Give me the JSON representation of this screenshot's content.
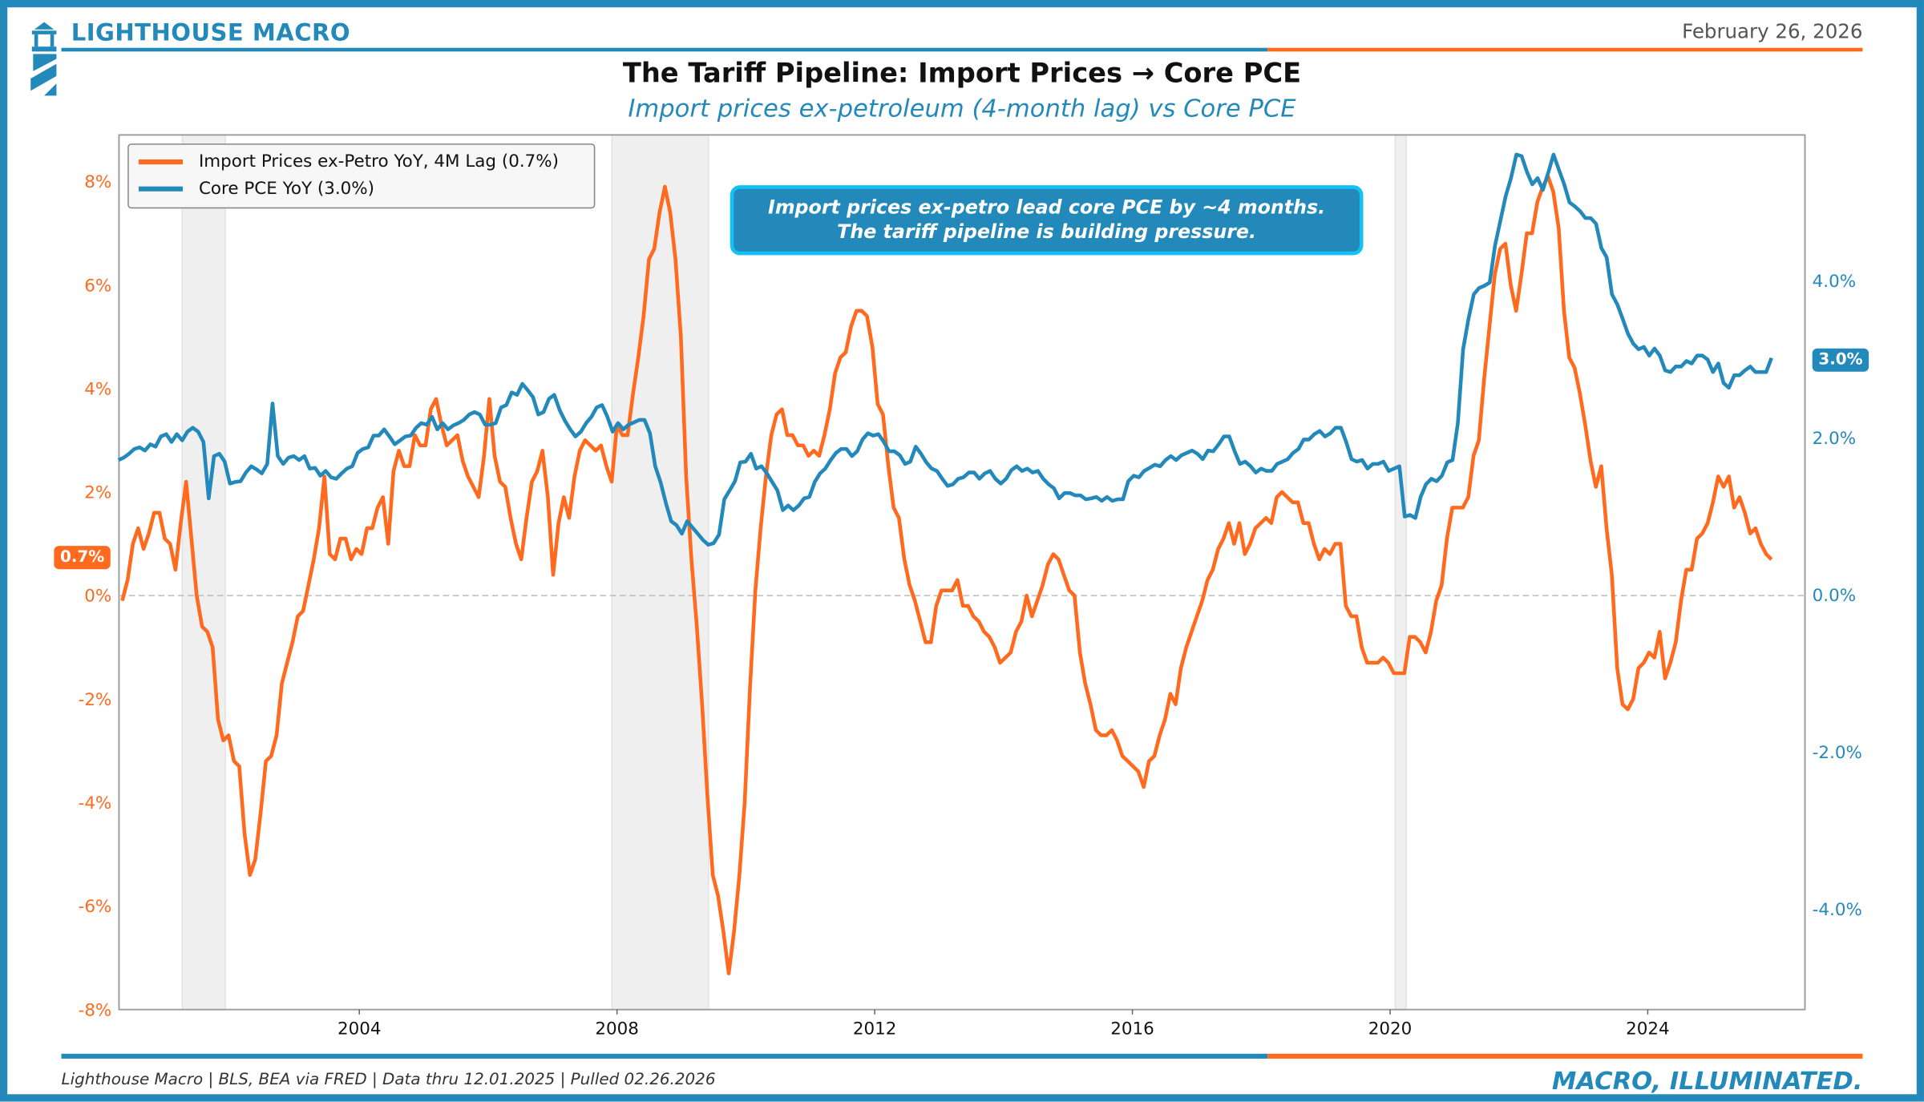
{
  "header": {
    "brand": "LIGHTHOUSE MACRO",
    "date": "February 26, 2026",
    "title": "The Tariff Pipeline: Import Prices → Core PCE",
    "subtitle": "Import prices ex-petroleum (4-month lag) vs Core PCE"
  },
  "annotation": {
    "line1": "Import prices ex-petro lead core PCE by ~4 months.",
    "line2": "The tariff pipeline is building pressure."
  },
  "badges": {
    "left": "0.7%",
    "right": "3.0%"
  },
  "footer": {
    "source": "Lighthouse Macro | BLS, BEA via FRED | Data thru 12.01.2025 | Pulled 02.26.2026",
    "tagline": "MACRO, ILLUMINATED."
  },
  "colors": {
    "orange": "#ff6a1f",
    "blue": "#2389ba",
    "recession": "#efefef"
  },
  "chart_data": {
    "type": "line",
    "title": "The Tariff Pipeline: Import Prices → Core PCE",
    "xlim": [
      2000.27,
      2026.44
    ],
    "x_ticks": [
      2004,
      2008,
      2012,
      2016,
      2020,
      2024
    ],
    "x_tick_labels": [
      "2004",
      "2008",
      "2012",
      "2016",
      "2020",
      "2024"
    ],
    "left_axis": {
      "ylim": [
        -8.0,
        8.9
      ],
      "ticks": [
        -8,
        -6,
        -4,
        -2,
        0,
        2,
        4,
        6,
        8
      ],
      "tick_labels": [
        "-8%",
        "-6%",
        "-4%",
        "-2%",
        "0%",
        "2%",
        "4%",
        "6%",
        "8%"
      ]
    },
    "right_axis": {
      "ylim": [
        -5.28,
        5.86
      ],
      "ticks": [
        -4,
        -2,
        0,
        2,
        4
      ],
      "tick_labels": [
        "-4.0%",
        "-2.0%",
        "0.0%",
        "2.0%",
        "4.0%"
      ]
    },
    "zero_line": true,
    "legend_position": "top-left",
    "recessions": [
      [
        2001.25,
        2001.92
      ],
      [
        2007.92,
        2009.42
      ],
      [
        2020.08,
        2020.25
      ]
    ],
    "series": [
      {
        "name": "Import Prices ex-Petro YoY, 4M Lag (0.7%)",
        "axis": "left",
        "color": "#ff6a1f",
        "start": 2000.32,
        "end": 2025.92,
        "values": [
          -0.1,
          0.3,
          1.0,
          1.3,
          0.9,
          1.2,
          1.6,
          1.6,
          1.1,
          1.0,
          0.5,
          1.4,
          2.2,
          1.1,
          0,
          -0.6,
          -0.7,
          -1.0,
          -2.4,
          -2.8,
          -2.7,
          -3.2,
          -3.3,
          -4.6,
          -5.4,
          -5.1,
          -4.2,
          -3.2,
          -3.1,
          -2.7,
          -1.7,
          -1.3,
          -0.9,
          -0.4,
          -0.3,
          0.2,
          0.7,
          1.3,
          2.3,
          0.8,
          0.7,
          1.1,
          1.1,
          0.7,
          0.9,
          0.8,
          1.3,
          1.3,
          1.7,
          1.9,
          1.0,
          2.4,
          2.8,
          2.5,
          2.5,
          3.1,
          2.9,
          2.9,
          3.6,
          3.8,
          3.3,
          2.9,
          3.0,
          3.1,
          2.6,
          2.3,
          2.1,
          1.9,
          2.7,
          3.8,
          2.7,
          2.2,
          2.1,
          1.5,
          1.0,
          0.7,
          1.5,
          2.2,
          2.4,
          2.8,
          1.9,
          0.4,
          1.4,
          1.9,
          1.5,
          2.3,
          2.8,
          3.0,
          2.9,
          2.8,
          2.9,
          2.5,
          2.2,
          3.3,
          3.1,
          3.1,
          3.9,
          4.6,
          5.4,
          6.5,
          6.7,
          7.4,
          7.9,
          7.4,
          6.5,
          5.0,
          2.3,
          0.7,
          -0.6,
          -2.1,
          -3.9,
          -5.4,
          -5.8,
          -6.5,
          -7.3,
          -6.5,
          -5.4,
          -4.0,
          -1.8,
          0.1,
          1.3,
          2.3,
          3.1,
          3.5,
          3.6,
          3.1,
          3.1,
          2.9,
          2.9,
          2.7,
          2.8,
          2.7,
          3.1,
          3.6,
          4.3,
          4.6,
          4.7,
          5.2,
          5.5,
          5.5,
          5.4,
          4.8,
          3.7,
          3.5,
          2.5,
          1.7,
          1.5,
          0.7,
          0.2,
          -0.1,
          -0.5,
          -0.9,
          -0.9,
          -0.2,
          0.1,
          0.1,
          0.1,
          0.3,
          -0.2,
          -0.2,
          -0.4,
          -0.5,
          -0.7,
          -0.8,
          -1.0,
          -1.3,
          -1.2,
          -1.1,
          -0.7,
          -0.5,
          0,
          -0.4,
          -0.1,
          0.2,
          0.6,
          0.8,
          0.7,
          0.4,
          0.1,
          0,
          -1.1,
          -1.7,
          -2.1,
          -2.6,
          -2.7,
          -2.7,
          -2.6,
          -2.8,
          -3.1,
          -3.2,
          -3.3,
          -3.4,
          -3.7,
          -3.2,
          -3.1,
          -2.7,
          -2.4,
          -1.9,
          -2.1,
          -1.4,
          -1.0,
          -0.7,
          -0.4,
          -0.1,
          0.3,
          0.5,
          0.9,
          1.1,
          1.4,
          1.0,
          1.4,
          0.8,
          1.0,
          1.3,
          1.4,
          1.5,
          1.4,
          1.9,
          2.0,
          1.9,
          1.8,
          1.8,
          1.4,
          1.4,
          1.0,
          0.7,
          0.9,
          0.8,
          1.0,
          1.0,
          -0.2,
          -0.4,
          -0.4,
          -1.0,
          -1.3,
          -1.3,
          -1.3,
          -1.2,
          -1.3,
          -1.5,
          -1.5,
          -1.5,
          -0.8,
          -0.8,
          -0.9,
          -1.1,
          -0.7,
          -0.1,
          0.2,
          1.1,
          1.7,
          1.7,
          1.7,
          1.9,
          2.7,
          3.0,
          4.2,
          5.2,
          6.2,
          6.7,
          6.8,
          6.0,
          5.5,
          6.2,
          7.0,
          7.0,
          7.6,
          7.9,
          8.1,
          7.8,
          7.1,
          5.5,
          4.6,
          4.4,
          3.9,
          3.3,
          2.6,
          2.1,
          2.5,
          1.3,
          0.4,
          -1.4,
          -2.1,
          -2.2,
          -2.0,
          -1.4,
          -1.3,
          -1.1,
          -1.2,
          -0.7,
          -1.6,
          -1.3,
          -0.9,
          -0.1,
          0.5,
          0.5,
          1.1,
          1.2,
          1.4,
          1.8,
          2.3,
          2.1,
          2.3,
          1.7,
          1.9,
          1.6,
          1.2,
          1.3,
          1.0,
          0.8,
          0.7
        ]
      },
      {
        "name": "Core PCE YoY (3.0%)",
        "axis": "right",
        "color": "#2389ba",
        "start": 2000.26,
        "end": 2025.92,
        "values": [
          1.72,
          1.75,
          1.8,
          1.86,
          1.88,
          1.84,
          1.92,
          1.89,
          2.02,
          2.05,
          1.95,
          2.05,
          1.97,
          2.08,
          2.13,
          2.08,
          1.95,
          1.23,
          1.77,
          1.8,
          1.7,
          1.42,
          1.44,
          1.45,
          1.56,
          1.64,
          1.6,
          1.55,
          1.67,
          2.44,
          1.77,
          1.67,
          1.75,
          1.77,
          1.72,
          1.77,
          1.61,
          1.62,
          1.52,
          1.58,
          1.5,
          1.48,
          1.55,
          1.61,
          1.64,
          1.81,
          1.86,
          1.88,
          2.03,
          2.03,
          2.11,
          2.02,
          1.92,
          1.97,
          2.02,
          2.03,
          2.13,
          2.19,
          2.17,
          2.27,
          2.11,
          2.19,
          2.11,
          2.16,
          2.19,
          2.23,
          2.3,
          2.33,
          2.3,
          2.17,
          2.17,
          2.19,
          2.39,
          2.42,
          2.58,
          2.55,
          2.69,
          2.61,
          2.52,
          2.3,
          2.33,
          2.5,
          2.55,
          2.36,
          2.22,
          2.11,
          2.02,
          2.08,
          2.19,
          2.27,
          2.39,
          2.42,
          2.27,
          2.08,
          2.19,
          2.11,
          2.17,
          2.2,
          2.23,
          2.23,
          2.06,
          1.64,
          1.44,
          1.17,
          0.94,
          0.89,
          0.78,
          0.94,
          0.86,
          0.78,
          0.7,
          0.64,
          0.66,
          0.77,
          1.22,
          1.33,
          1.45,
          1.69,
          1.7,
          1.8,
          1.61,
          1.64,
          1.55,
          1.44,
          1.33,
          1.08,
          1.14,
          1.08,
          1.14,
          1.23,
          1.25,
          1.44,
          1.55,
          1.61,
          1.72,
          1.81,
          1.86,
          1.86,
          1.77,
          1.83,
          1.98,
          2.06,
          2.03,
          2.05,
          1.95,
          1.83,
          1.83,
          1.78,
          1.67,
          1.7,
          1.89,
          1.8,
          1.69,
          1.61,
          1.58,
          1.48,
          1.39,
          1.41,
          1.48,
          1.5,
          1.56,
          1.56,
          1.48,
          1.55,
          1.58,
          1.48,
          1.42,
          1.48,
          1.59,
          1.64,
          1.58,
          1.61,
          1.56,
          1.58,
          1.48,
          1.41,
          1.36,
          1.23,
          1.3,
          1.3,
          1.27,
          1.27,
          1.22,
          1.23,
          1.25,
          1.2,
          1.25,
          1.2,
          1.22,
          1.22,
          1.45,
          1.52,
          1.5,
          1.58,
          1.62,
          1.66,
          1.64,
          1.72,
          1.77,
          1.72,
          1.78,
          1.81,
          1.84,
          1.8,
          1.73,
          1.84,
          1.83,
          1.92,
          2.02,
          2.02,
          1.83,
          1.67,
          1.7,
          1.64,
          1.56,
          1.61,
          1.58,
          1.58,
          1.67,
          1.7,
          1.73,
          1.81,
          1.86,
          1.98,
          1.98,
          2.05,
          2.09,
          2.02,
          2.06,
          2.13,
          2.13,
          1.95,
          1.73,
          1.7,
          1.72,
          1.61,
          1.67,
          1.67,
          1.7,
          1.58,
          1.61,
          1.64,
          1.0,
          1.02,
          0.98,
          1.25,
          1.41,
          1.48,
          1.45,
          1.52,
          1.69,
          1.72,
          2.19,
          3.13,
          3.52,
          3.83,
          3.91,
          3.94,
          3.98,
          4.45,
          4.77,
          5.08,
          5.31,
          5.61,
          5.59,
          5.39,
          5.23,
          5.31,
          5.16,
          5.38,
          5.61,
          5.42,
          5.23,
          5.0,
          4.95,
          4.89,
          4.8,
          4.8,
          4.73,
          4.42,
          4.3,
          3.83,
          3.7,
          3.52,
          3.33,
          3.2,
          3.13,
          3.16,
          3.05,
          3.14,
          3.05,
          2.86,
          2.84,
          2.91,
          2.91,
          2.98,
          2.95,
          3.05,
          3.05,
          3.0,
          2.84,
          2.95,
          2.7,
          2.64,
          2.8,
          2.8,
          2.86,
          2.91,
          2.84,
          2.84,
          2.84,
          3.02
        ]
      }
    ]
  }
}
